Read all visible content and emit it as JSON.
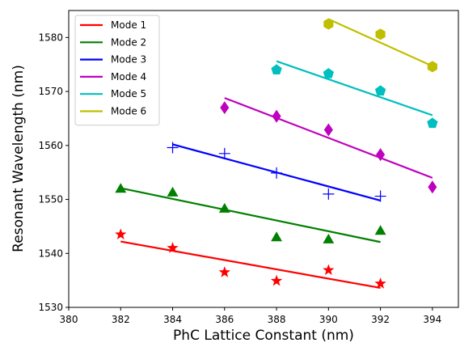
{
  "chart_data": {
    "type": "scatter",
    "title": "",
    "xlabel": "PhC Lattice Constant (nm)",
    "ylabel": "Resonant Wavelength (nm)",
    "xlim": [
      380,
      395
    ],
    "ylim": [
      1530,
      1585
    ],
    "xticks": [
      380,
      382,
      384,
      386,
      388,
      390,
      392,
      394
    ],
    "yticks": [
      1530,
      1540,
      1550,
      1560,
      1570,
      1580
    ],
    "grid": false,
    "legend_position": "top-left",
    "series": [
      {
        "name": "Mode 1",
        "color": "#ff0000",
        "marker": "star",
        "points": [
          [
            382,
            1543.5
          ],
          [
            384,
            1541.0
          ],
          [
            386,
            1536.5
          ],
          [
            388,
            1534.9
          ],
          [
            390,
            1536.9
          ],
          [
            392,
            1534.4
          ]
        ],
        "fit": [
          [
            382,
            1542.2
          ],
          [
            392,
            1533.6
          ]
        ]
      },
      {
        "name": "Mode 2",
        "color": "#008000",
        "marker": "triangle",
        "points": [
          [
            382,
            1552.0
          ],
          [
            384,
            1551.3
          ],
          [
            386,
            1548.3
          ],
          [
            388,
            1543.0
          ],
          [
            390,
            1542.6
          ],
          [
            392,
            1544.2
          ]
        ],
        "fit": [
          [
            382,
            1552.1
          ],
          [
            392,
            1542.1
          ]
        ]
      },
      {
        "name": "Mode 3",
        "color": "#0000ff",
        "marker": "plus",
        "points": [
          [
            384,
            1559.6
          ],
          [
            386,
            1558.5
          ],
          [
            388,
            1554.9
          ],
          [
            390,
            1551.0
          ],
          [
            392,
            1550.6
          ]
        ],
        "fit": [
          [
            384,
            1560.2
          ],
          [
            392,
            1549.8
          ]
        ]
      },
      {
        "name": "Mode 4",
        "color": "#bf00bf",
        "marker": "diamond",
        "points": [
          [
            386,
            1567.0
          ],
          [
            388,
            1565.4
          ],
          [
            390,
            1562.9
          ],
          [
            392,
            1558.3
          ],
          [
            394,
            1552.3
          ]
        ],
        "fit": [
          [
            386,
            1568.8
          ],
          [
            394,
            1554.0
          ]
        ]
      },
      {
        "name": "Mode 5",
        "color": "#00bfbf",
        "marker": "pentagon",
        "points": [
          [
            388,
            1574.0
          ],
          [
            390,
            1573.3
          ],
          [
            392,
            1570.1
          ],
          [
            394,
            1564.1
          ]
        ],
        "fit": [
          [
            388,
            1575.6
          ],
          [
            394,
            1565.6
          ]
        ]
      },
      {
        "name": "Mode 6",
        "color": "#bfbf00",
        "marker": "hexagon",
        "points": [
          [
            390,
            1582.5
          ],
          [
            392,
            1580.6
          ],
          [
            394,
            1574.6
          ]
        ],
        "fit": [
          [
            390,
            1583.4
          ],
          [
            394,
            1574.7
          ]
        ]
      }
    ]
  }
}
